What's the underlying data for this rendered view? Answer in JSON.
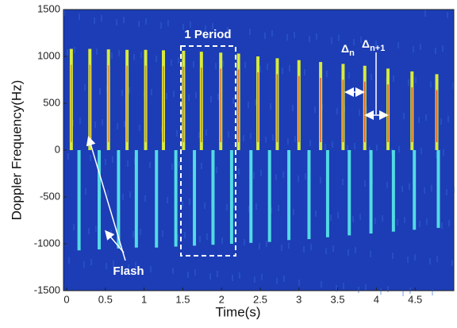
{
  "chart_data": {
    "type": "spectrogram",
    "xlabel": "Time(s)",
    "ylabel": "Doppler Frequency(Hz)",
    "xlim": [
      0,
      5
    ],
    "ylim": [
      -1500,
      1500
    ],
    "xticks": [
      0,
      0.5,
      1,
      1.5,
      2,
      2.5,
      3,
      3.5,
      4,
      4.5
    ],
    "yticks": [
      -1500,
      -1000,
      -500,
      0,
      500,
      1000,
      1500
    ],
    "background": "#1c3db5",
    "series": [
      {
        "color": "#d8ea3a",
        "x": [
          0.06,
          0.3,
          0.54,
          0.78,
          1.02,
          1.25,
          1.51,
          1.74,
          1.99,
          2.22,
          2.47,
          2.72,
          3.0,
          3.28,
          3.57,
          3.85,
          4.15,
          4.46,
          4.78
        ],
        "values": [
          1080,
          1080,
          1075,
          1070,
          1070,
          1065,
          1060,
          1050,
          1040,
          1030,
          1000,
          980,
          960,
          940,
          920,
          900,
          870,
          840,
          810
        ]
      },
      {
        "color": "#52dbe3",
        "x": [
          0.16,
          0.42,
          0.67,
          0.9,
          1.16,
          1.41,
          1.65,
          1.89,
          2.13,
          2.38,
          2.62,
          2.87,
          3.13,
          3.37,
          3.65,
          3.93,
          4.22,
          4.49,
          4.8
        ],
        "values": [
          -1070,
          -1060,
          -1050,
          -1040,
          -1040,
          -1030,
          -1020,
          -1010,
          -1000,
          -990,
          -980,
          -960,
          -950,
          -930,
          -910,
          -890,
          -870,
          -850,
          -830
        ]
      }
    ],
    "annotations": {
      "period": "1 Period",
      "flash": "Flash",
      "delta": "Δ",
      "sub_n": "n",
      "sub_n1": "n+1"
    }
  }
}
